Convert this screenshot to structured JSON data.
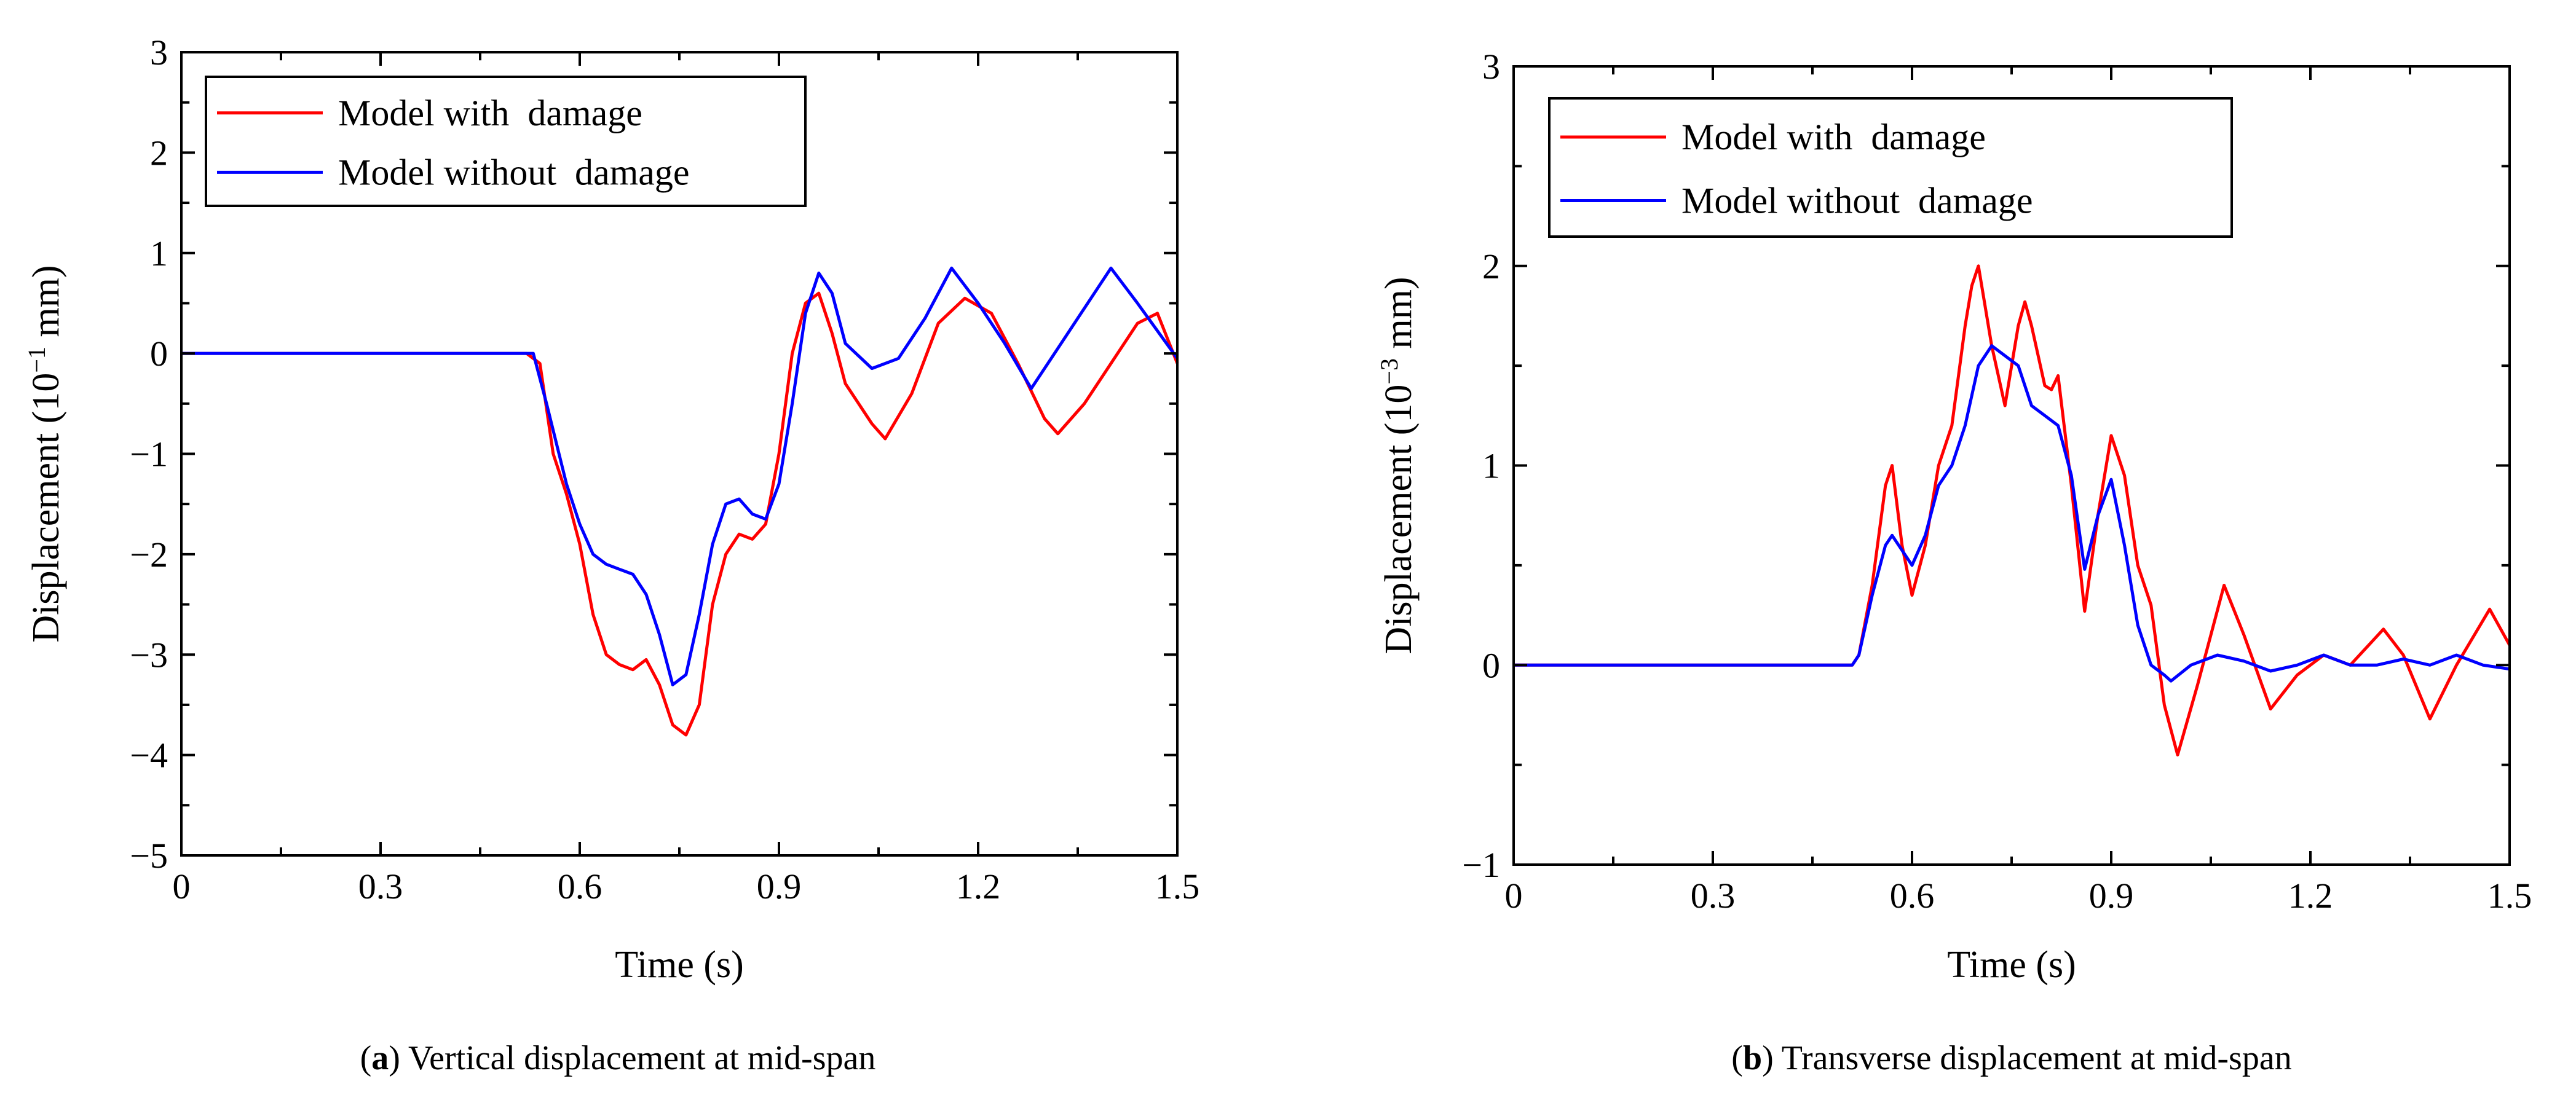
{
  "chart_data": [
    {
      "panel": "a",
      "type": "line",
      "caption_letter": "a",
      "caption_text": " Vertical displacement at mid-span",
      "xlabel": "Time (s)",
      "ylabel_pre": "Displacement (10",
      "ylabel_exp": "−1",
      "ylabel_post": " mm)",
      "xlim": [
        0,
        1.5
      ],
      "ylim": [
        -5,
        3
      ],
      "xticks": [
        0,
        0.3,
        0.6,
        0.9,
        1.2,
        1.5
      ],
      "xtick_labels": [
        "0",
        "0.3",
        "0.6",
        "0.9",
        "1.2",
        "1.5"
      ],
      "yticks": [
        -5,
        -4,
        -3,
        -2,
        -1,
        0,
        1,
        2,
        3
      ],
      "ytick_labels": [
        "−5",
        "−4",
        "−3",
        "−2",
        "−1",
        "0",
        "1",
        "2",
        "3"
      ],
      "grid": false,
      "legend_position": "top-left",
      "series": [
        {
          "name": "Model with  damage",
          "color": "#ff0000",
          "x": [
            0,
            0.52,
            0.54,
            0.56,
            0.58,
            0.6,
            0.62,
            0.64,
            0.66,
            0.68,
            0.7,
            0.72,
            0.74,
            0.76,
            0.78,
            0.8,
            0.82,
            0.84,
            0.86,
            0.88,
            0.9,
            0.92,
            0.94,
            0.96,
            0.98,
            1.0,
            1.02,
            1.04,
            1.06,
            1.1,
            1.14,
            1.18,
            1.22,
            1.26,
            1.3,
            1.32,
            1.36,
            1.4,
            1.44,
            1.47,
            1.5
          ],
          "y": [
            0,
            0,
            -0.1,
            -1.0,
            -1.4,
            -1.9,
            -2.6,
            -3.0,
            -3.1,
            -3.15,
            -3.05,
            -3.3,
            -3.7,
            -3.8,
            -3.5,
            -2.5,
            -2.0,
            -1.8,
            -1.85,
            -1.7,
            -1.0,
            0.0,
            0.5,
            0.6,
            0.2,
            -0.3,
            -0.5,
            -0.7,
            -0.85,
            -0.4,
            0.3,
            0.55,
            0.4,
            -0.1,
            -0.65,
            -0.8,
            -0.5,
            -0.1,
            0.3,
            0.4,
            -0.1
          ]
        },
        {
          "name": "Model without  damage",
          "color": "#0000ff",
          "x": [
            0,
            0.53,
            0.55,
            0.58,
            0.6,
            0.62,
            0.64,
            0.66,
            0.68,
            0.7,
            0.72,
            0.74,
            0.76,
            0.78,
            0.8,
            0.82,
            0.84,
            0.86,
            0.88,
            0.9,
            0.92,
            0.94,
            0.96,
            0.98,
            1.0,
            1.04,
            1.08,
            1.12,
            1.16,
            1.2,
            1.24,
            1.28,
            1.32,
            1.36,
            1.4,
            1.44,
            1.5
          ],
          "y": [
            0,
            0,
            -0.5,
            -1.3,
            -1.7,
            -2.0,
            -2.1,
            -2.15,
            -2.2,
            -2.4,
            -2.8,
            -3.3,
            -3.2,
            -2.6,
            -1.9,
            -1.5,
            -1.45,
            -1.6,
            -1.65,
            -1.3,
            -0.5,
            0.4,
            0.8,
            0.6,
            0.1,
            -0.15,
            -0.05,
            0.35,
            0.85,
            0.5,
            0.1,
            -0.35,
            0.05,
            0.45,
            0.85,
            0.5,
            -0.05
          ]
        }
      ]
    },
    {
      "panel": "b",
      "type": "line",
      "caption_letter": "b",
      "caption_text": " Transverse displacement at mid-span",
      "xlabel": "Time (s)",
      "ylabel_pre": "Displacement (10",
      "ylabel_exp": "−3",
      "ylabel_post": " mm)",
      "xlim": [
        0,
        1.5
      ],
      "ylim": [
        -1,
        3
      ],
      "xticks": [
        0,
        0.3,
        0.6,
        0.9,
        1.2,
        1.5
      ],
      "xtick_labels": [
        "0",
        "0.3",
        "0.6",
        "0.9",
        "1.2",
        "1.5"
      ],
      "yticks": [
        -1,
        0,
        1,
        2,
        3
      ],
      "ytick_labels": [
        "−1",
        "0",
        "1",
        "2",
        "3"
      ],
      "grid": false,
      "legend_position": "top-left",
      "series": [
        {
          "name": "Model with  damage",
          "color": "#ff0000",
          "x": [
            0,
            0.51,
            0.52,
            0.54,
            0.56,
            0.57,
            0.585,
            0.6,
            0.62,
            0.64,
            0.66,
            0.68,
            0.69,
            0.7,
            0.71,
            0.72,
            0.74,
            0.76,
            0.77,
            0.78,
            0.8,
            0.81,
            0.82,
            0.84,
            0.86,
            0.88,
            0.9,
            0.92,
            0.94,
            0.96,
            0.98,
            1.0,
            1.03,
            1.07,
            1.1,
            1.14,
            1.18,
            1.22,
            1.26,
            1.31,
            1.34,
            1.38,
            1.42,
            1.47,
            1.5
          ],
          "y": [
            0,
            0,
            0.05,
            0.4,
            0.9,
            1.0,
            0.6,
            0.35,
            0.6,
            1.0,
            1.2,
            1.7,
            1.9,
            2.0,
            1.8,
            1.6,
            1.3,
            1.7,
            1.82,
            1.7,
            1.4,
            1.38,
            1.45,
            0.9,
            0.27,
            0.75,
            1.15,
            0.95,
            0.5,
            0.3,
            -0.2,
            -0.45,
            -0.1,
            0.4,
            0.15,
            -0.22,
            -0.05,
            0.05,
            0.0,
            0.18,
            0.05,
            -0.27,
            0.0,
            0.28,
            0.1
          ]
        },
        {
          "name": "Model without  damage",
          "color": "#0000ff",
          "x": [
            0,
            0.51,
            0.52,
            0.54,
            0.56,
            0.57,
            0.59,
            0.6,
            0.62,
            0.64,
            0.66,
            0.68,
            0.7,
            0.72,
            0.74,
            0.76,
            0.78,
            0.8,
            0.82,
            0.84,
            0.86,
            0.88,
            0.9,
            0.92,
            0.94,
            0.96,
            0.98,
            0.99,
            1.02,
            1.06,
            1.1,
            1.14,
            1.18,
            1.22,
            1.26,
            1.3,
            1.34,
            1.38,
            1.42,
            1.46,
            1.5
          ],
          "y": [
            0,
            0,
            0.05,
            0.35,
            0.6,
            0.65,
            0.55,
            0.5,
            0.65,
            0.9,
            1.0,
            1.2,
            1.5,
            1.6,
            1.55,
            1.5,
            1.3,
            1.25,
            1.2,
            0.95,
            0.48,
            0.75,
            0.93,
            0.6,
            0.2,
            0.0,
            -0.05,
            -0.08,
            0.0,
            0.05,
            0.02,
            -0.03,
            0.0,
            0.05,
            0.0,
            0.0,
            0.03,
            0.0,
            0.05,
            0.0,
            -0.02
          ]
        }
      ]
    }
  ]
}
